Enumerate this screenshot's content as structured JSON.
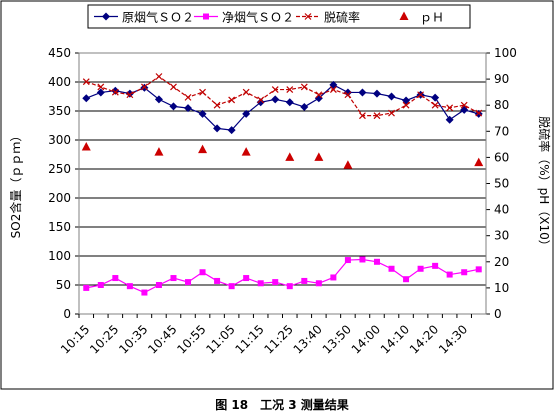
{
  "chart_data": {
    "type": "line",
    "categories": [
      "10:15",
      null,
      "10:25",
      null,
      "10:35",
      null,
      "10:45",
      null,
      "10:55",
      null,
      "11:05",
      null,
      "11:15",
      null,
      "11:25",
      null,
      "13:40",
      null,
      "13:50",
      null,
      "14:00",
      null,
      "14:10",
      null,
      "14:20",
      null,
      "14:30",
      null
    ],
    "y_label": "SO2含量（ｐｐｍ）",
    "y2_label": "脱硫率（%）pH（X10）",
    "caption": "图 18　工况 3 测量结果",
    "ylim": [
      0,
      450
    ],
    "yticks": [
      0,
      50,
      100,
      150,
      200,
      250,
      300,
      350,
      400,
      450
    ],
    "y2lim": [
      0,
      100
    ],
    "y2ticks": [
      0,
      10,
      20,
      30,
      40,
      50,
      60,
      70,
      80,
      90,
      100
    ],
    "grid": true,
    "series": [
      {
        "name": "原烟气ＳＯ２",
        "color": "#000080",
        "marker": "diamond",
        "line": true,
        "values": [
          372,
          382,
          385,
          380,
          390,
          370,
          358,
          355,
          345,
          320,
          317,
          345,
          365,
          370,
          365,
          357,
          372,
          395,
          382,
          382,
          380,
          375,
          368,
          378,
          373,
          335,
          352,
          345
        ]
      },
      {
        "name": "净烟气ＳＯ２",
        "color": "#ff00ff",
        "marker": "square",
        "line": true,
        "values": [
          45,
          50,
          62,
          48,
          37,
          50,
          62,
          55,
          72,
          57,
          48,
          62,
          53,
          55,
          48,
          57,
          53,
          63,
          93,
          94,
          90,
          78,
          60,
          78,
          83,
          68,
          72,
          77
        ]
      },
      {
        "name": "脱硫率",
        "color": "#c00000",
        "marker": "x",
        "line": true,
        "dashed": true,
        "axis": "y2",
        "values": [
          89,
          87,
          85,
          84,
          87,
          91,
          87,
          83,
          85,
          80,
          82,
          85,
          82,
          86,
          86,
          87,
          84,
          86,
          84,
          76,
          76,
          77,
          80,
          84,
          80,
          79,
          80,
          77
        ]
      },
      {
        "name": "ｐＨ",
        "color": "#cc0000",
        "marker": "triangle",
        "line": false,
        "axis": "y2",
        "values": [
          64,
          null,
          null,
          null,
          null,
          62,
          null,
          null,
          63,
          null,
          null,
          62,
          null,
          null,
          60,
          null,
          60,
          null,
          57,
          null,
          null,
          null,
          null,
          null,
          null,
          null,
          null,
          58
        ]
      }
    ]
  }
}
